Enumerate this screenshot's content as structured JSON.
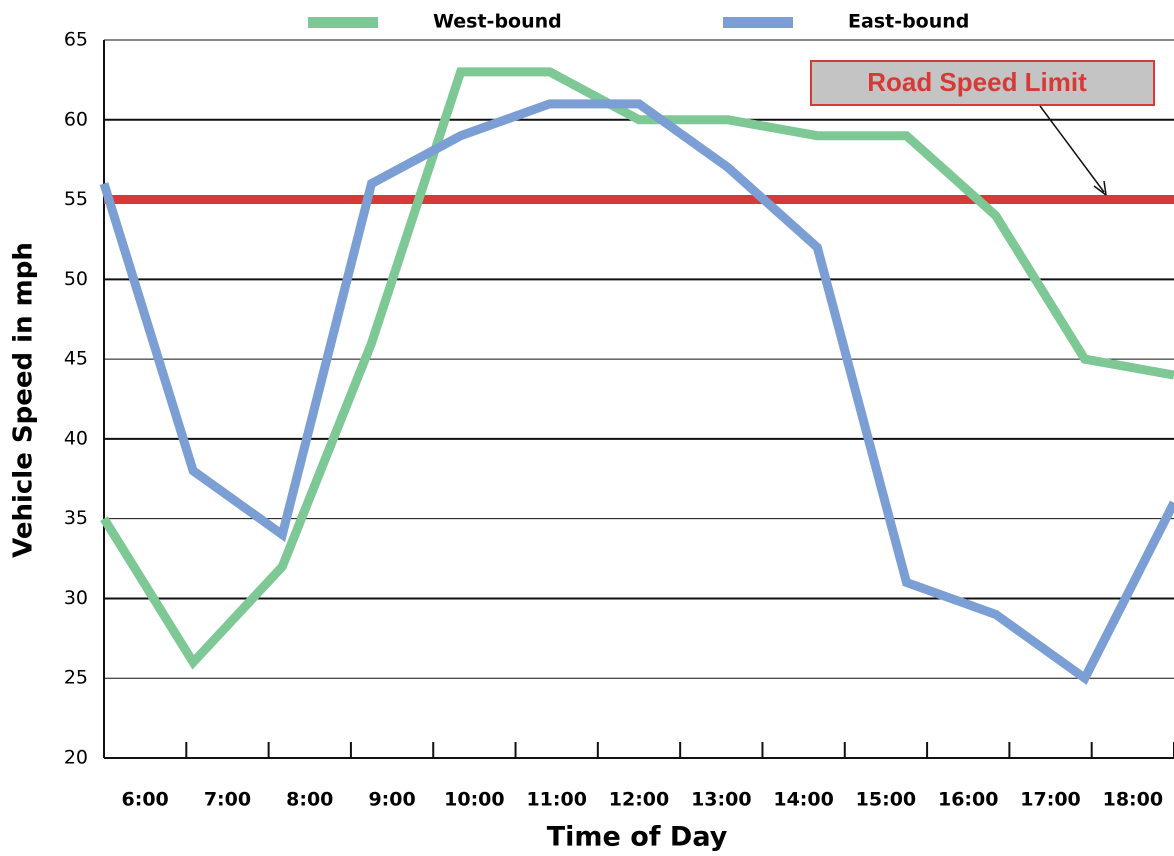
{
  "chart_data": {
    "type": "line",
    "x_label": "Time of Day",
    "y_label": "Vehicle Speed  in mph",
    "categories": [
      "6:00",
      "7:00",
      "8:00",
      "9:00",
      "10:00",
      "11:00",
      "12:00",
      "13:00",
      "14:00",
      "15:00",
      "16:00",
      "17:00",
      "18:00"
    ],
    "series": [
      {
        "name": "West-bound",
        "color": "#7ec896",
        "values": [
          35,
          26,
          32,
          46,
          63,
          63,
          60,
          60,
          59,
          59,
          54,
          45,
          44
        ]
      },
      {
        "name": "East-bound",
        "color": "#7b9fd4",
        "values": [
          56,
          38,
          34,
          56,
          59,
          61,
          61,
          57,
          52,
          31,
          29,
          25,
          36
        ]
      }
    ],
    "reference_line": {
      "value": 55,
      "label": "Road Speed Limit",
      "color": "#d63a36"
    },
    "ylim": [
      20,
      65
    ],
    "yticks": [
      20,
      25,
      30,
      35,
      40,
      45,
      50,
      55,
      60,
      65
    ],
    "grid": true
  }
}
